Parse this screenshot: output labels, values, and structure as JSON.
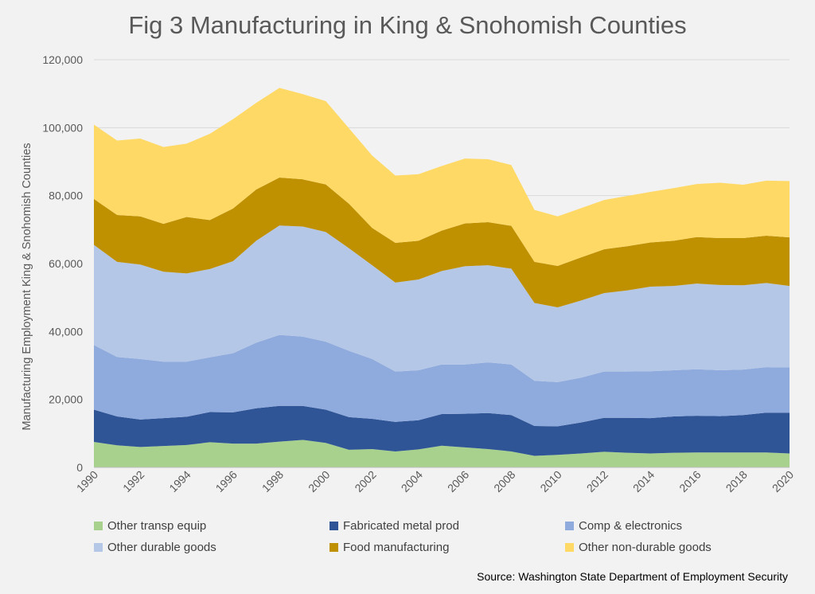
{
  "chart_data": {
    "type": "area",
    "stacked": true,
    "title": "Fig 3 Manufacturing in King & Snohomish Counties",
    "ylabel": "Manufacturing Employment King & Snohomish Counties",
    "source": "Source: Washington State Department of Employment Security",
    "ylim": [
      0,
      120000
    ],
    "yticks": [
      0,
      20000,
      40000,
      60000,
      80000,
      100000,
      120000
    ],
    "ytick_labels": [
      "0",
      "20,000",
      "40,000",
      "60,000",
      "80,000",
      "100,000",
      "120,000"
    ],
    "x": [
      1990,
      1991,
      1992,
      1993,
      1994,
      1995,
      1996,
      1997,
      1998,
      1999,
      2000,
      2001,
      2002,
      2003,
      2004,
      2005,
      2006,
      2007,
      2008,
      2009,
      2010,
      2011,
      2012,
      2013,
      2014,
      2015,
      2016,
      2017,
      2018,
      2019,
      2020
    ],
    "xtick_labels": [
      "1990",
      "1992",
      "1994",
      "1996",
      "1998",
      "2000",
      "2002",
      "2004",
      "2006",
      "2008",
      "2010",
      "2012",
      "2014",
      "2016",
      "2018",
      "2020"
    ],
    "grid": true,
    "legend_position": "bottom",
    "series": [
      {
        "name": "Other transp equip",
        "color": "#a9d18e",
        "values": [
          7500,
          6500,
          6000,
          6300,
          6600,
          7400,
          7000,
          7000,
          7600,
          8100,
          7200,
          5200,
          5400,
          4700,
          5300,
          6400,
          5900,
          5400,
          4700,
          3400,
          3700,
          4100,
          4600,
          4300,
          4100,
          4300,
          4400,
          4400,
          4400,
          4400,
          4100
        ]
      },
      {
        "name": "Fabricated metal prod",
        "color": "#2f5597",
        "values": [
          9500,
          8500,
          8100,
          8200,
          8300,
          8900,
          9200,
          10400,
          10500,
          10000,
          9800,
          9600,
          8900,
          8700,
          8600,
          9300,
          9900,
          10600,
          10700,
          8800,
          8400,
          9100,
          10000,
          10300,
          10400,
          10700,
          10800,
          10700,
          11000,
          11700,
          12000
        ]
      },
      {
        "name": "Comp & electronics",
        "color": "#8faadc",
        "values": [
          19000,
          17500,
          17800,
          16600,
          16200,
          16100,
          17400,
          19300,
          20900,
          20400,
          20000,
          19500,
          17600,
          14800,
          14700,
          14600,
          14500,
          14900,
          14900,
          13300,
          13000,
          13200,
          13600,
          13600,
          13800,
          13600,
          13700,
          13500,
          13400,
          13400,
          13300
        ]
      },
      {
        "name": "Other durable goods",
        "color": "#b4c7e7",
        "values": [
          29500,
          28000,
          27800,
          26500,
          26000,
          26000,
          27100,
          30000,
          32200,
          32400,
          32300,
          30200,
          27600,
          26200,
          26700,
          27500,
          28900,
          28600,
          28200,
          22900,
          22000,
          22700,
          23100,
          23900,
          24900,
          24800,
          25200,
          25100,
          24800,
          24800,
          24000
        ]
      },
      {
        "name": "Food manufacturing",
        "color": "#bf9000",
        "values": [
          13500,
          13800,
          14200,
          14100,
          16600,
          14400,
          15500,
          15100,
          14100,
          13900,
          14000,
          13100,
          11000,
          11700,
          11400,
          11900,
          12600,
          12700,
          12600,
          12100,
          12200,
          12700,
          12900,
          13000,
          13000,
          13300,
          13700,
          13800,
          13900,
          13900,
          14300
        ]
      },
      {
        "name": "Other non-durable goods",
        "color": "#ffd966",
        "values": [
          21900,
          21900,
          22900,
          22600,
          21600,
          25400,
          26300,
          25500,
          26400,
          25100,
          24500,
          22200,
          21300,
          19800,
          19600,
          19000,
          19100,
          18500,
          17900,
          15300,
          14600,
          14500,
          14500,
          14800,
          14900,
          15500,
          15600,
          16300,
          15700,
          16200,
          16600
        ]
      }
    ]
  }
}
